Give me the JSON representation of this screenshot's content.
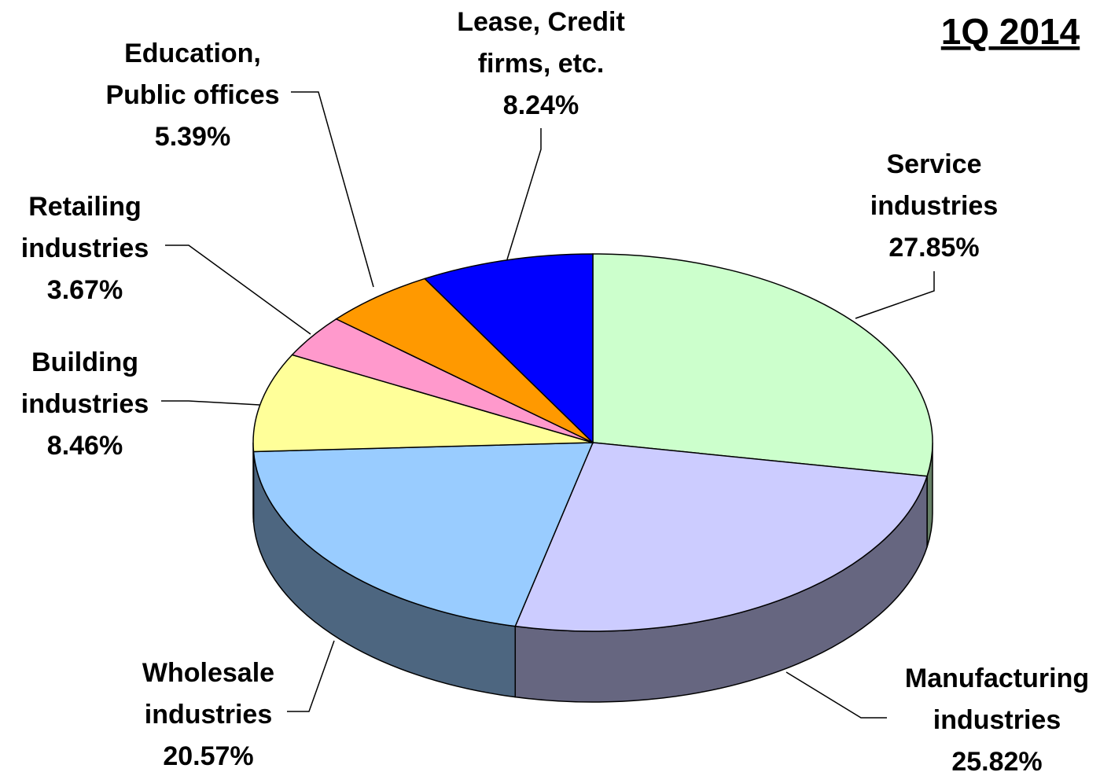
{
  "chart_data": {
    "type": "pie3d",
    "title": "1Q 2014",
    "categories": [
      [
        "Service",
        "industries"
      ],
      [
        "Manufacturing",
        "industries"
      ],
      [
        "Wholesale",
        "industries"
      ],
      [
        "Building",
        "industries"
      ],
      [
        "Retailing",
        "industries"
      ],
      [
        "Education,",
        "Public offices"
      ],
      [
        "Lease, Credit",
        "firms, etc."
      ]
    ],
    "values": [
      27.85,
      25.82,
      20.57,
      8.46,
      3.67,
      5.39,
      8.24
    ],
    "value_labels": [
      "27.85%",
      "25.82%",
      "20.57%",
      "8.46%",
      "3.67%",
      "5.39%",
      "8.24%"
    ],
    "colors": [
      "#ccffcc",
      "#ccccff",
      "#99ccff",
      "#ffff99",
      "#ff99cc",
      "#ff9900",
      "#0000ff"
    ]
  }
}
